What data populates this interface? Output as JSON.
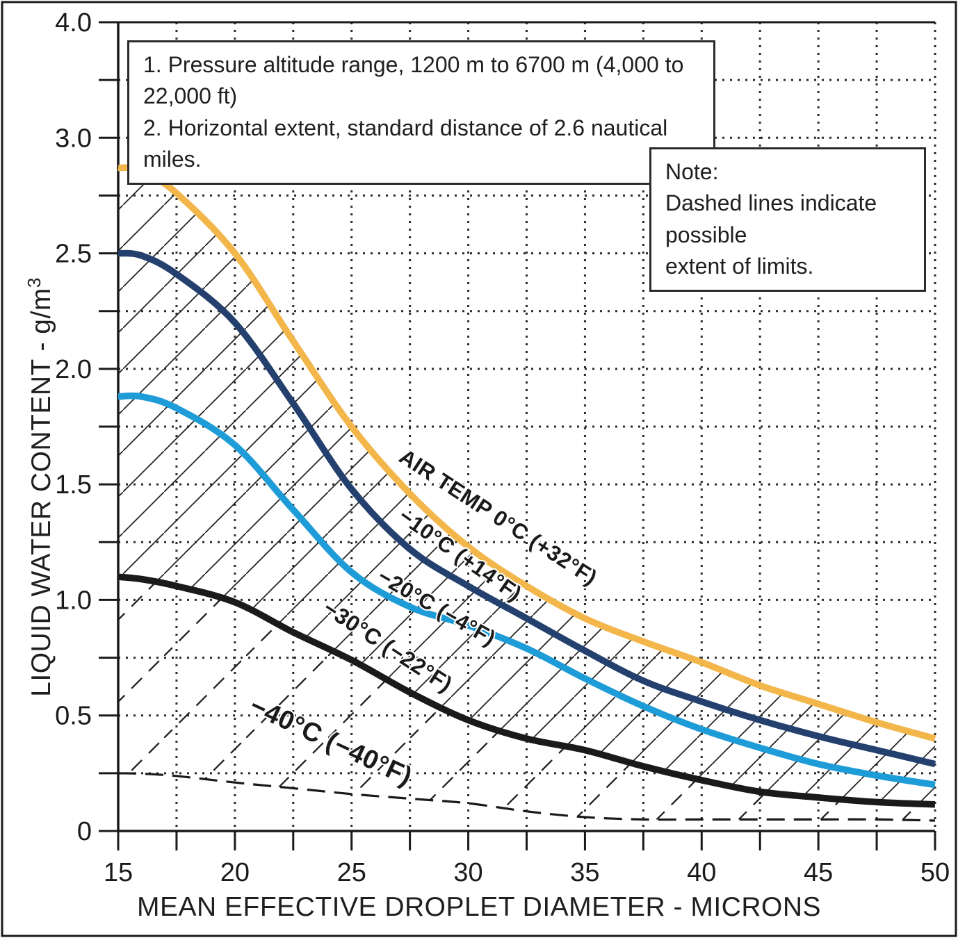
{
  "annotation_boxes": {
    "conditions": {
      "line1": "1. Pressure altitude range, 1200 m to 6700 m (4,000 to 22,000 ft)",
      "line2": "2. Horizontal extent, standard distance of 2.6 nautical miles."
    },
    "note": {
      "line1": "Note:",
      "line2": "Dashed lines indicate possible",
      "line3": "extent of limits."
    }
  },
  "axes": {
    "x": {
      "title": "MEAN EFFECTIVE DROPLET DIAMETER - MICRONS",
      "tick_labels": [
        "15",
        "20",
        "25",
        "30",
        "35",
        "40",
        "45",
        "50"
      ],
      "min": 15,
      "max": 50,
      "minor_step": 2.5
    },
    "y": {
      "title": "LIQUID WATER CONTENT - g/m",
      "title_superscript": "3",
      "tick_labels": [
        "4.0",
        "3.0",
        "2.5",
        "2.0",
        "1.5",
        "1.0",
        "0.5",
        "0"
      ],
      "min": 0,
      "max": 4,
      "note": "scale compressed above 3.0: ticks every 0.5 above, every 0.25 below"
    }
  },
  "chart_data": {
    "type": "line",
    "title": "",
    "xlabel": "MEAN EFFECTIVE DROPLET DIAMETER - MICRONS",
    "ylabel": "LIQUID WATER CONTENT - g/m3",
    "x": [
      15,
      16,
      17.5,
      20,
      22.5,
      25,
      27.5,
      30,
      32.5,
      35,
      37.5,
      40,
      42.5,
      45,
      47.5,
      50
    ],
    "series": [
      {
        "name": "air-temp-0c",
        "label": "AIR TEMP 0°C (+32°F)",
        "color": "#F3B64A",
        "style": "solid",
        "values": [
          2.87,
          2.86,
          2.76,
          2.5,
          2.12,
          1.75,
          1.46,
          1.23,
          1.06,
          0.92,
          0.82,
          0.73,
          0.63,
          0.55,
          0.47,
          0.4
        ]
      },
      {
        "name": "minus-10c",
        "label": "−10°C (+14°F)",
        "color": "#24406E",
        "style": "solid",
        "values": [
          2.5,
          2.49,
          2.41,
          2.2,
          1.85,
          1.48,
          1.22,
          1.06,
          0.92,
          0.78,
          0.65,
          0.56,
          0.48,
          0.41,
          0.35,
          0.29
        ]
      },
      {
        "name": "minus-20c",
        "label": "−20°C (−4°F)",
        "color": "#1E9CD8",
        "style": "solid",
        "values": [
          1.88,
          1.88,
          1.83,
          1.67,
          1.39,
          1.12,
          0.97,
          0.89,
          0.79,
          0.66,
          0.54,
          0.44,
          0.36,
          0.29,
          0.24,
          0.2
        ]
      },
      {
        "name": "minus-30c",
        "label": "−30°C (−22°F)",
        "color": "#1A1A1A",
        "style": "solid",
        "values": [
          1.1,
          1.09,
          1.06,
          0.99,
          0.86,
          0.74,
          0.6,
          0.48,
          0.4,
          0.35,
          0.28,
          0.22,
          0.17,
          0.145,
          0.125,
          0.115
        ]
      },
      {
        "name": "minus-40c",
        "label": "−40°C (−40°F)",
        "color": "#1A1A1A",
        "style": "dashed",
        "values": [
          0.25,
          0.248,
          0.238,
          0.21,
          0.185,
          0.16,
          0.14,
          0.12,
          0.085,
          0.06,
          0.05,
          0.05,
          0.05,
          0.05,
          0.05,
          0.045
        ]
      }
    ],
    "hatching": [
      {
        "between": [
          "air-temp-0c",
          "minus-30c"
        ],
        "style": "solid"
      },
      {
        "between": [
          "minus-30c",
          "minus-40c"
        ],
        "style": "dashed"
      }
    ],
    "grid": "dotted",
    "legend_position": "labels-on-curves"
  },
  "colors": {
    "curve_0c": "#F3B64A",
    "curve_minus10": "#24406E",
    "curve_minus20": "#1E9CD8",
    "curve_black": "#1A1A1A",
    "grid": "#2b2b2b",
    "frame": "#1a1a1a"
  }
}
